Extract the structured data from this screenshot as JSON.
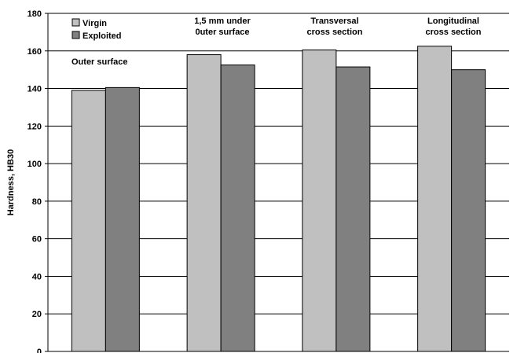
{
  "chart_data": {
    "type": "bar",
    "ylabel": "Hardness, HB30",
    "ylim": [
      0,
      180
    ],
    "yticks": [
      0,
      20,
      40,
      60,
      80,
      100,
      120,
      140,
      160,
      180
    ],
    "grid": "horizontal",
    "legend_position": "top-left",
    "categories": [
      [
        "Outer surface"
      ],
      [
        "1,5 mm under",
        "0uter surface"
      ],
      [
        "Transversal",
        "cross section"
      ],
      [
        "Longitudinal",
        "cross section"
      ]
    ],
    "series": [
      {
        "name": "Virgin",
        "color": "#c0c0c0",
        "values": [
          139,
          158,
          160.5,
          162.5
        ]
      },
      {
        "name": "Exploited",
        "color": "#808080",
        "values": [
          140.5,
          152.5,
          151.5,
          150
        ]
      }
    ]
  }
}
